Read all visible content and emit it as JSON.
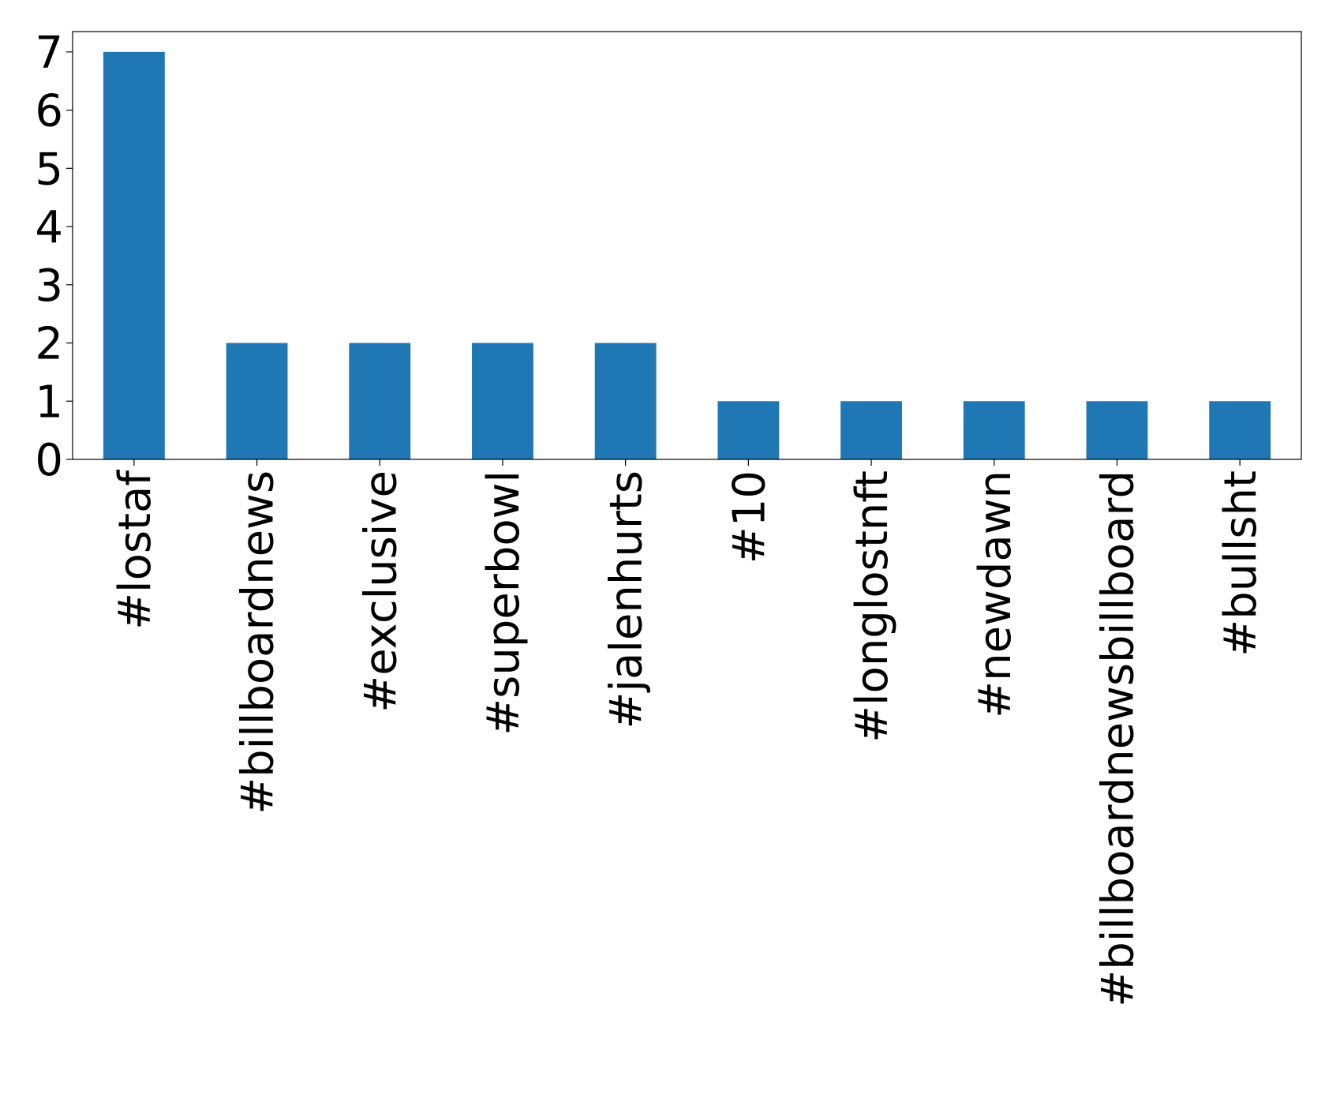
{
  "chart_data": {
    "type": "bar",
    "categories": [
      "#lostaf",
      "#billboardnews",
      "#exclusive",
      "#superbowl",
      "#jalenhurts",
      "#10",
      "#longlostnft",
      "#newdawn",
      "#billboardnewsbillboard",
      "#bullsht"
    ],
    "values": [
      7,
      2,
      2,
      2,
      2,
      1,
      1,
      1,
      1,
      1
    ],
    "color": "#1f77b4",
    "ylim": [
      0,
      7.35
    ],
    "yticks": [
      0,
      1,
      2,
      3,
      4,
      5,
      6,
      7
    ],
    "grid": false
  }
}
